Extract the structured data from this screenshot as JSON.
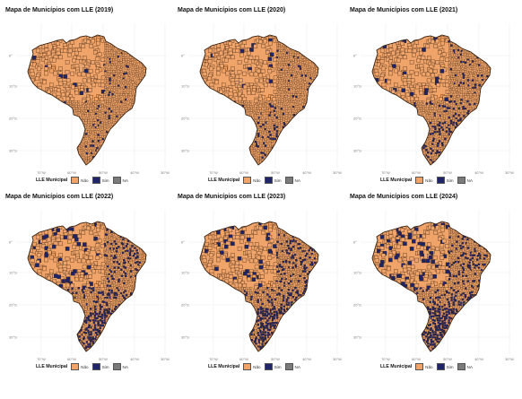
{
  "colors": {
    "nao": "#f0a469",
    "sim": "#1f2466",
    "na": "#7a7a7a",
    "border": "#3b2414",
    "grid": "#ececec"
  },
  "legend": {
    "title": "LLE Municipal",
    "items": [
      {
        "label": "Não",
        "color": "#f0a469"
      },
      {
        "label": "Sim",
        "color": "#1f2466"
      },
      {
        "label": "NA",
        "color": "#7a7a7a"
      }
    ]
  },
  "axes": {
    "y_ticks": [
      "0°",
      "10°S",
      "20°S",
      "30°S"
    ],
    "x_ticks": [
      "70°W",
      "60°W",
      "50°W",
      "40°W",
      "30°W"
    ]
  },
  "panels": [
    {
      "title": "Mapa de Municípios com LLE (2019)",
      "year": 2019,
      "sim_share": 0.08
    },
    {
      "title": "Mapa de Municípios com LLE (2020)",
      "year": 2020,
      "sim_share": 0.12
    },
    {
      "title": "Mapa de Municípios com LLE (2021)",
      "year": 2021,
      "sim_share": 0.22
    },
    {
      "title": "Mapa de Municípios com LLE (2022)",
      "year": 2022,
      "sim_share": 0.4
    },
    {
      "title": "Mapa de Municípios com LLE (2023)",
      "year": 2023,
      "sim_share": 0.42
    },
    {
      "title": "Mapa de Municípios com LLE (2024)",
      "year": 2024,
      "sim_share": 0.46
    }
  ]
}
